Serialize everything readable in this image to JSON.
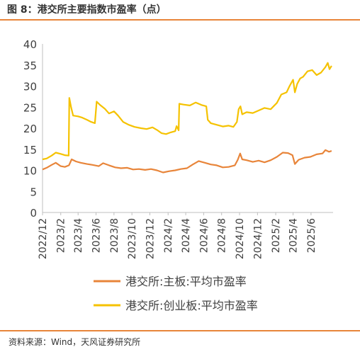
{
  "header": {
    "title": "图 8：港交所主要指数市盈率（点）"
  },
  "footer": {
    "source": "资料来源：Wind，天风证券研究所"
  },
  "chart_data": {
    "type": "line",
    "title": "图 8：港交所主要指数市盈率（点）",
    "xlabel": "",
    "ylabel": "",
    "ylim": [
      0,
      40
    ],
    "yticks": [
      0,
      5,
      10,
      15,
      20,
      25,
      30,
      35,
      40
    ],
    "xlim": [
      "2022-12",
      "2025-08"
    ],
    "xticks": [
      "2022/12",
      "2023/2",
      "2023/4",
      "2023/6",
      "2023/8",
      "2023/10",
      "2023/12",
      "2024/2",
      "2024/4",
      "2024/6",
      "2024/8",
      "2024/10",
      "2024/12",
      "2025/2",
      "2025/4",
      "2025/6"
    ],
    "grid": false,
    "legend_position": "bottom",
    "series": [
      {
        "name": "港交所:主板:平均市盈率",
        "color": "#e8853a",
        "points": [
          [
            "2022-12-01",
            10.2
          ],
          [
            "2022-12-15",
            10.6
          ],
          [
            "2023-01-01",
            11.3
          ],
          [
            "2023-01-15",
            11.8
          ],
          [
            "2023-02-01",
            11.0
          ],
          [
            "2023-02-15",
            10.8
          ],
          [
            "2023-03-01",
            11.2
          ],
          [
            "2023-03-10",
            12.6
          ],
          [
            "2023-03-25",
            12.1
          ],
          [
            "2023-04-10",
            11.8
          ],
          [
            "2023-05-01",
            11.5
          ],
          [
            "2023-05-20",
            11.3
          ],
          [
            "2023-06-10",
            11.0
          ],
          [
            "2023-06-25",
            11.7
          ],
          [
            "2023-07-15",
            11.2
          ],
          [
            "2023-08-05",
            10.7
          ],
          [
            "2023-08-25",
            10.5
          ],
          [
            "2023-09-15",
            10.6
          ],
          [
            "2023-10-05",
            10.2
          ],
          [
            "2023-10-25",
            10.3
          ],
          [
            "2023-11-15",
            10.1
          ],
          [
            "2023-12-05",
            10.3
          ],
          [
            "2023-12-25",
            10.0
          ],
          [
            "2024-01-15",
            9.5
          ],
          [
            "2024-02-05",
            9.8
          ],
          [
            "2024-02-25",
            10.0
          ],
          [
            "2024-03-15",
            10.3
          ],
          [
            "2024-04-05",
            10.5
          ],
          [
            "2024-04-25",
            11.4
          ],
          [
            "2024-05-15",
            12.2
          ],
          [
            "2024-06-05",
            11.8
          ],
          [
            "2024-06-25",
            11.4
          ],
          [
            "2024-07-15",
            11.2
          ],
          [
            "2024-08-05",
            10.7
          ],
          [
            "2024-08-25",
            10.8
          ],
          [
            "2024-09-15",
            11.2
          ],
          [
            "2024-09-25",
            12.5
          ],
          [
            "2024-10-03",
            14.0
          ],
          [
            "2024-10-10",
            12.6
          ],
          [
            "2024-10-25",
            12.4
          ],
          [
            "2024-11-15",
            12.0
          ],
          [
            "2024-12-05",
            12.3
          ],
          [
            "2024-12-25",
            11.9
          ],
          [
            "2025-01-15",
            12.4
          ],
          [
            "2025-02-05",
            13.2
          ],
          [
            "2025-02-25",
            14.2
          ],
          [
            "2025-03-15",
            14.1
          ],
          [
            "2025-03-30",
            13.6
          ],
          [
            "2025-04-07",
            11.5
          ],
          [
            "2025-04-20",
            12.5
          ],
          [
            "2025-05-10",
            13.0
          ],
          [
            "2025-05-30",
            13.2
          ],
          [
            "2025-06-20",
            13.8
          ],
          [
            "2025-07-10",
            14.0
          ],
          [
            "2025-07-20",
            14.8
          ],
          [
            "2025-08-01",
            14.4
          ],
          [
            "2025-08-10",
            14.6
          ]
        ]
      },
      {
        "name": "港交所:创业板:平均市盈率",
        "color": "#f5c200",
        "points": [
          [
            "2022-12-01",
            12.6
          ],
          [
            "2022-12-15",
            12.8
          ],
          [
            "2023-01-01",
            13.5
          ],
          [
            "2023-01-15",
            14.2
          ],
          [
            "2023-02-01",
            13.9
          ],
          [
            "2023-02-15",
            13.6
          ],
          [
            "2023-02-28",
            13.5
          ],
          [
            "2023-03-02",
            27.2
          ],
          [
            "2023-03-08",
            25.0
          ],
          [
            "2023-03-15",
            23.0
          ],
          [
            "2023-04-01",
            22.8
          ],
          [
            "2023-04-15",
            22.5
          ],
          [
            "2023-05-01",
            22.0
          ],
          [
            "2023-05-15",
            21.5
          ],
          [
            "2023-05-28",
            21.2
          ],
          [
            "2023-06-03",
            26.3
          ],
          [
            "2023-06-15",
            25.5
          ],
          [
            "2023-07-01",
            24.6
          ],
          [
            "2023-07-15",
            23.5
          ],
          [
            "2023-08-01",
            24.0
          ],
          [
            "2023-08-15",
            23.0
          ],
          [
            "2023-09-01",
            21.5
          ],
          [
            "2023-09-20",
            20.8
          ],
          [
            "2023-10-10",
            20.3
          ],
          [
            "2023-11-01",
            20.0
          ],
          [
            "2023-11-20",
            19.8
          ],
          [
            "2023-12-10",
            20.2
          ],
          [
            "2023-12-25",
            19.6
          ],
          [
            "2024-01-10",
            18.8
          ],
          [
            "2024-01-25",
            18.6
          ],
          [
            "2024-02-10",
            19.0
          ],
          [
            "2024-02-25",
            19.3
          ],
          [
            "2024-03-01",
            20.5
          ],
          [
            "2024-03-08",
            19.5
          ],
          [
            "2024-03-10",
            25.8
          ],
          [
            "2024-03-25",
            25.6
          ],
          [
            "2024-04-15",
            25.4
          ],
          [
            "2024-05-05",
            26.1
          ],
          [
            "2024-05-25",
            25.5
          ],
          [
            "2024-06-10",
            25.2
          ],
          [
            "2024-06-15",
            22.0
          ],
          [
            "2024-06-25",
            21.2
          ],
          [
            "2024-07-15",
            20.8
          ],
          [
            "2024-08-05",
            20.4
          ],
          [
            "2024-08-25",
            20.6
          ],
          [
            "2024-09-10",
            20.3
          ],
          [
            "2024-09-22",
            21.5
          ],
          [
            "2024-09-28",
            24.5
          ],
          [
            "2024-10-04",
            25.2
          ],
          [
            "2024-10-10",
            23.3
          ],
          [
            "2024-10-25",
            23.8
          ],
          [
            "2024-11-15",
            23.6
          ],
          [
            "2024-12-05",
            24.2
          ],
          [
            "2024-12-25",
            24.8
          ],
          [
            "2025-01-15",
            24.5
          ],
          [
            "2025-02-05",
            26.0
          ],
          [
            "2025-02-20",
            28.0
          ],
          [
            "2025-03-10",
            28.5
          ],
          [
            "2025-03-20",
            30.0
          ],
          [
            "2025-04-01",
            31.5
          ],
          [
            "2025-04-07",
            28.5
          ],
          [
            "2025-04-15",
            30.5
          ],
          [
            "2025-04-25",
            31.8
          ],
          [
            "2025-05-05",
            32.2
          ],
          [
            "2025-05-20",
            33.5
          ],
          [
            "2025-06-05",
            33.8
          ],
          [
            "2025-06-20",
            32.6
          ],
          [
            "2025-07-05",
            33.2
          ],
          [
            "2025-07-20",
            34.5
          ],
          [
            "2025-07-28",
            35.5
          ],
          [
            "2025-08-03",
            34.0
          ],
          [
            "2025-08-10",
            34.8
          ]
        ]
      }
    ]
  }
}
